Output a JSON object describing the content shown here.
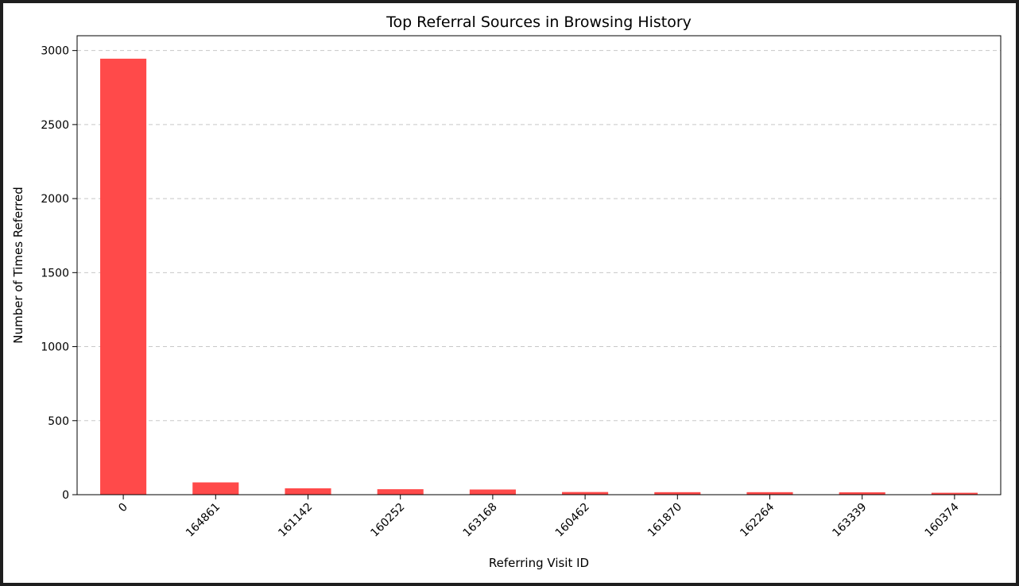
{
  "chart_data": {
    "type": "bar",
    "title": "Top Referral Sources in Browsing History",
    "xlabel": "Referring Visit ID",
    "ylabel": "Number of Times Referred",
    "categories": [
      "0",
      "164861",
      "161142",
      "160252",
      "163168",
      "160462",
      "161870",
      "162264",
      "163339",
      "160374"
    ],
    "values": [
      2945,
      83,
      43,
      37,
      35,
      18,
      17,
      17,
      16,
      13
    ],
    "ylim": [
      0,
      3100
    ],
    "yticks": [
      0,
      500,
      1000,
      1500,
      2000,
      2500,
      3000
    ],
    "grid": "y-dashed",
    "bar_color": "#ff4a4a"
  }
}
